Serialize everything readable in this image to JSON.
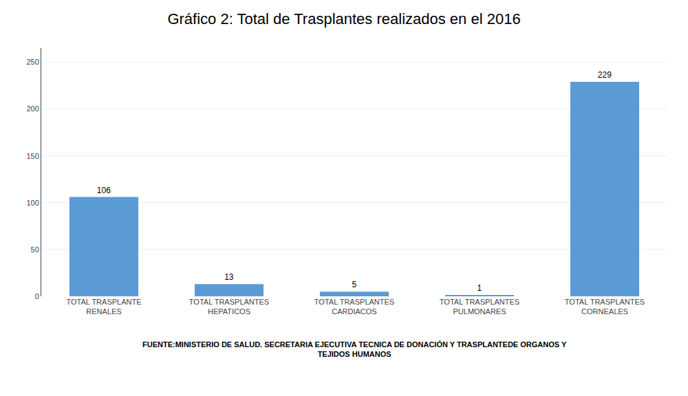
{
  "chart_data": {
    "type": "bar",
    "title": "Gráfico 2: Total de Trasplantes realizados en el 2016",
    "categories": [
      "TOTAL TRASPLANTE\nRENALES",
      "TOTAL TRASPLANTES\nHEPATICOS",
      "TOTAL TRASPLANTES\nCARDIACOS",
      "TOTAL TRASPLANTES\nPULMONARES",
      "TOTAL TRASPLANTES\nCORNEALES"
    ],
    "values": [
      106,
      13,
      5,
      1,
      229
    ],
    "color": "#5B9BD5",
    "ylim": [
      0,
      265
    ],
    "yticks": [
      0,
      50,
      100,
      150,
      200,
      250
    ],
    "grid": true,
    "data_labels": true,
    "annotations": [
      "FUENTE:MINISTERIO DE SALUD. SECRETARIA EJECUTIVA TECNICA DE DONACIÓN Y TRASPLANTEDE ORGANOS Y\nTEJIDOS HUMANOS"
    ]
  }
}
